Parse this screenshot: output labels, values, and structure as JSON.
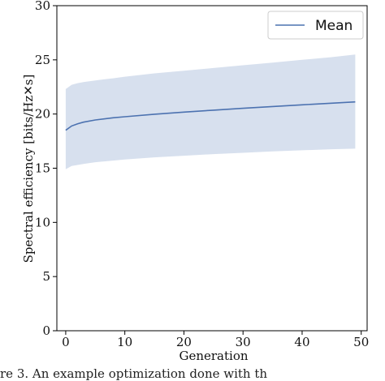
{
  "chart_data": {
    "type": "line",
    "xlabel": "Generation",
    "ylabel": "Spectral efficiency [bits/Hz✕s]",
    "xlim": [
      -1.5,
      51
    ],
    "ylim": [
      0,
      30
    ],
    "x_ticks": [
      0,
      10,
      20,
      30,
      40,
      50
    ],
    "y_ticks": [
      0,
      5,
      10,
      15,
      20,
      25,
      30
    ],
    "grid": false,
    "legend": {
      "position": "top-right",
      "entries": [
        "Mean"
      ]
    },
    "colors": {
      "line": "#4c72b0",
      "band": "#c9d5e8"
    },
    "series": [
      {
        "name": "Mean",
        "x": [
          0,
          1,
          2,
          3,
          5,
          8,
          10,
          15,
          20,
          25,
          30,
          35,
          40,
          45,
          49
        ],
        "mean": [
          18.5,
          18.9,
          19.1,
          19.25,
          19.45,
          19.65,
          19.75,
          19.98,
          20.18,
          20.36,
          20.53,
          20.69,
          20.85,
          21.0,
          21.12
        ],
        "upper": [
          22.3,
          22.7,
          22.85,
          22.95,
          23.1,
          23.3,
          23.45,
          23.75,
          24.0,
          24.25,
          24.5,
          24.75,
          25.0,
          25.25,
          25.5
        ],
        "lower": [
          14.9,
          15.2,
          15.3,
          15.4,
          15.55,
          15.7,
          15.8,
          16.0,
          16.15,
          16.3,
          16.42,
          16.55,
          16.65,
          16.75,
          16.8
        ]
      }
    ]
  },
  "caption": {
    "text": "re 3. An example optimization done with th"
  }
}
